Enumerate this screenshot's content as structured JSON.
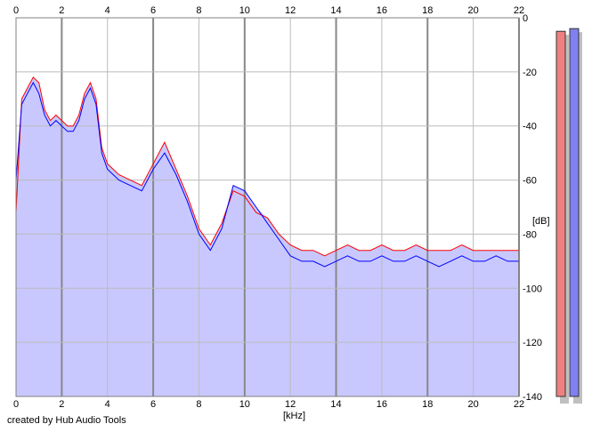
{
  "credit": "created by Hub Audio Tools",
  "chart_data": {
    "type": "line",
    "xlabel": "[kHz]",
    "ylabel": "[dB]",
    "xlim": [
      0,
      22
    ],
    "ylim": [
      -140,
      0
    ],
    "x_ticks": [
      0,
      2,
      4,
      6,
      8,
      10,
      12,
      14,
      16,
      18,
      20,
      22
    ],
    "y_ticks": [
      0,
      -20,
      -40,
      -60,
      -80,
      -100,
      -120,
      -140
    ],
    "grid": true,
    "x": [
      0,
      0.25,
      0.5,
      0.75,
      1,
      1.25,
      1.5,
      1.75,
      2,
      2.25,
      2.5,
      2.75,
      3,
      3.25,
      3.5,
      3.75,
      4,
      4.5,
      5,
      5.5,
      6,
      6.5,
      7,
      7.5,
      8,
      8.5,
      9,
      9.5,
      10,
      10.5,
      11,
      11.5,
      12,
      12.5,
      13,
      13.5,
      14,
      14.5,
      15,
      15.5,
      16,
      16.5,
      17,
      17.5,
      18,
      18.5,
      19,
      19.5,
      20,
      20.5,
      21,
      21.5,
      22
    ],
    "series": [
      {
        "color": "#ff0000",
        "values": [
          -72,
          -30,
          -26,
          -22,
          -24,
          -34,
          -38,
          -36,
          -38,
          -40,
          -40,
          -36,
          -28,
          -24,
          -30,
          -48,
          -54,
          -58,
          -60,
          -62,
          -54,
          -46,
          -56,
          -66,
          -78,
          -84,
          -76,
          -64,
          -66,
          -72,
          -74,
          -80,
          -84,
          -86,
          -86,
          -88,
          -86,
          -84,
          -86,
          -86,
          -84,
          -86,
          -86,
          -84,
          -86,
          -86,
          -86,
          -84,
          -86,
          -86,
          -86,
          -86,
          -86
        ]
      },
      {
        "color": "#0000ff",
        "values": [
          -60,
          -32,
          -28,
          -24,
          -28,
          -36,
          -40,
          -38,
          -40,
          -42,
          -42,
          -38,
          -30,
          -26,
          -32,
          -50,
          -56,
          -60,
          -62,
          -64,
          -56,
          -50,
          -58,
          -68,
          -80,
          -86,
          -78,
          -62,
          -64,
          -70,
          -76,
          -82,
          -88,
          -90,
          -90,
          -92,
          -90,
          -88,
          -90,
          -90,
          -88,
          -90,
          -90,
          -88,
          -90,
          -92,
          -90,
          -88,
          -90,
          -90,
          -88,
          -90,
          -90
        ]
      }
    ],
    "meters": [
      {
        "color": "#f08080",
        "value": -5
      },
      {
        "color": "#8080f0",
        "value": -4
      }
    ],
    "fill_color": "#c8c8ff"
  }
}
